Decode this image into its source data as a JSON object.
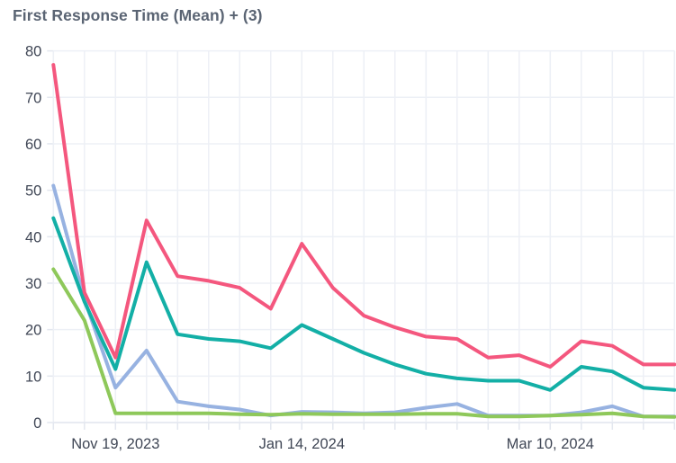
{
  "title": "First Response Time (Mean) + (3)",
  "colors": {
    "background": "#ffffff",
    "title_text": "#5a6473",
    "tick_label_text": "#3f4655",
    "gridline": "#edf0f6",
    "axis_line": "#e3e7ef",
    "series_pink": "#f4577e",
    "series_teal": "#13afa6",
    "series_blue": "#97b2e1",
    "series_green": "#8ec85a"
  },
  "chart_data": {
    "type": "line",
    "title": "First Response Time (Mean) + (3)",
    "xlabel": "",
    "ylabel": "",
    "ylim": [
      0,
      80
    ],
    "y_ticks": [
      0,
      10,
      20,
      30,
      40,
      50,
      60,
      70,
      80
    ],
    "grid": true,
    "legend": false,
    "point_count": 21,
    "x_tick_labels": [
      {
        "label": "Nov 19, 2023",
        "index": 2
      },
      {
        "label": "Jan 14, 2024",
        "index": 8
      },
      {
        "label": "Mar 10, 2024",
        "index": 16
      }
    ],
    "series": [
      {
        "name": "blue",
        "color": "#97b2e1",
        "values": [
          51,
          26.5,
          7.5,
          15.5,
          4.5,
          3.5,
          2.8,
          1.5,
          2.3,
          2.2,
          2,
          2.2,
          3.2,
          4,
          1.5,
          1.5,
          1.5,
          2.2,
          3.5,
          1.3,
          1.3
        ]
      },
      {
        "name": "green",
        "color": "#8ec85a",
        "values": [
          33,
          22,
          2,
          2,
          2,
          2,
          1.8,
          1.7,
          1.9,
          1.8,
          1.8,
          1.8,
          1.9,
          1.9,
          1.3,
          1.3,
          1.5,
          1.7,
          2,
          1.3,
          1.2
        ]
      },
      {
        "name": "teal",
        "color": "#13afa6",
        "values": [
          44,
          26,
          11.5,
          34.5,
          19,
          18,
          17.5,
          16,
          21,
          18,
          15,
          12.5,
          10.5,
          9.5,
          9,
          9,
          7,
          12,
          11,
          7.5,
          7
        ]
      },
      {
        "name": "pink",
        "color": "#f4577e",
        "values": [
          77,
          28,
          14,
          43.5,
          31.5,
          30.5,
          29,
          24.5,
          38.5,
          29,
          23,
          20.5,
          18.5,
          18,
          14,
          14.5,
          12,
          17.5,
          16.5,
          12.5,
          12.5
        ]
      }
    ]
  }
}
